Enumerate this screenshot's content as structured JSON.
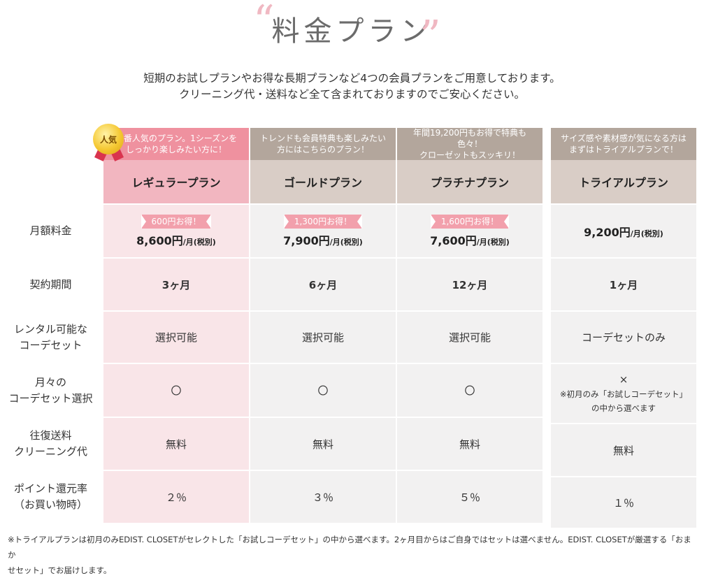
{
  "header": {
    "title": "料金プラン",
    "intro_line1": "短期のお試しプランやお得な長期プランなど4つの会員プランをご用意しております。",
    "intro_line2": "クリーニング代・送料など全て含まれておりますのでご安心ください。"
  },
  "badge": {
    "label": "人気"
  },
  "plans": [
    {
      "tagline_1": "一番人気のプラン。1シーズンを",
      "tagline_2": "しっかり楽しみたい方に！",
      "name": "レギュラープラン",
      "deal": "600円お得！",
      "price": "8,600円",
      "price_unit": "/月(税別)",
      "period": "3ヶ月",
      "rental": "選択可能",
      "select": "〇",
      "shipping": "無料",
      "points": "２％"
    },
    {
      "tagline_1": "トレンドも会員特典も楽しみたい",
      "tagline_2": "方にはこちらのプラン！",
      "name": "ゴールドプラン",
      "deal": "1,300円お得！",
      "price": "7,900円",
      "price_unit": "/月(税別)",
      "period": "6ヶ月",
      "rental": "選択可能",
      "select": "〇",
      "shipping": "無料",
      "points": "３％"
    },
    {
      "tagline_1": "年間19,200円もお得で特典も色々！",
      "tagline_2": "クローゼットもスッキリ！",
      "name": "プラチナプラン",
      "deal": "1,600円お得！",
      "price": "7,600円",
      "price_unit": "/月(税別)",
      "period": "12ヶ月",
      "rental": "選択可能",
      "select": "〇",
      "shipping": "無料",
      "points": "５％"
    },
    {
      "tagline_1": "サイズ感や素材感が気になる方は",
      "tagline_2": "まずはトライアルプランで！",
      "name": "トライアルプラン",
      "price": "9,200円",
      "price_unit": "/月(税別)",
      "period": "1ヶ月",
      "rental": "コーデセットのみ",
      "select": "×",
      "select_note_1": "※初月のみ「お試しコーデセット」",
      "select_note_2": "の中から選べます",
      "shipping": "無料",
      "points": "１％"
    }
  ],
  "row_labels": {
    "fee": "月額料金",
    "period": "契約期間",
    "rental_1": "レンタル可能な",
    "rental_2": "コーデセット",
    "select_1": "月々の",
    "select_2": "コーデセット選択",
    "shipping_1": "往復送料",
    "shipping_2": "クリーニング代",
    "points_1": "ポイント還元率",
    "points_2": "（お買い物時）"
  },
  "footnote_line1": "※トライアルプランは初月のみEDIST. CLOSETがセレクトした「お試しコーデセット」の中から選べます。2ヶ月目からはご自身ではセットは選べません。EDIST. CLOSETが厳選する「おまか",
  "footnote_line2": "せセット」でお届けします。",
  "colors": {
    "pink_header": "#ef919f",
    "pink_name": "#f2b6c0",
    "pink_body": "#f9e5e8",
    "gray_header": "#b3a69c",
    "gray_name": "#d9cdc6",
    "gray_body": "#f2f1f1"
  }
}
